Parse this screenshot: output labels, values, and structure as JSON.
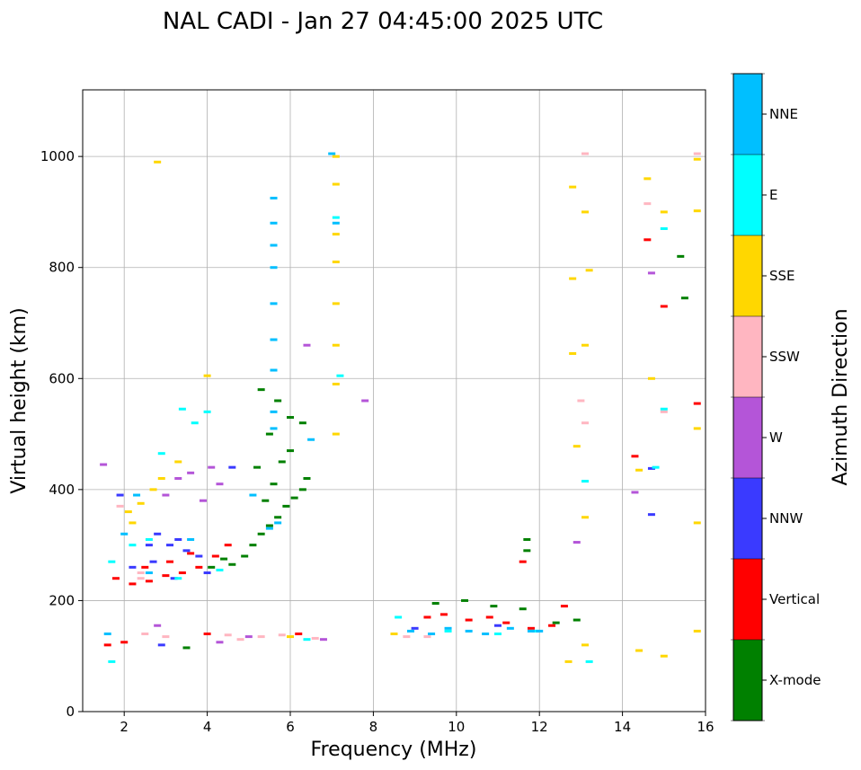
{
  "chart_data": {
    "type": "scatter",
    "title": "NAL CADI - Jan 27 04:45:00 2025 UTC",
    "xlabel": "Frequency (MHz)",
    "ylabel": "Virtual height (km)",
    "xlim": [
      1,
      16
    ],
    "ylim": [
      0,
      1120
    ],
    "xticks": [
      2,
      4,
      6,
      8,
      10,
      12,
      14,
      16
    ],
    "yticks": [
      0,
      200,
      400,
      600,
      800,
      1000
    ],
    "grid": true,
    "colorbar": {
      "title": "Azimuth Direction",
      "position": "right",
      "categories": [
        {
          "name": "X-mode",
          "color": "#008000"
        },
        {
          "name": "Vertical",
          "color": "#ff0000"
        },
        {
          "name": "NNW",
          "color": "#3a3aff"
        },
        {
          "name": "W",
          "color": "#b455d8"
        },
        {
          "name": "SSW",
          "color": "#ffb6c1"
        },
        {
          "name": "SSE",
          "color": "#ffd700"
        },
        {
          "name": "E",
          "color": "#00ffff"
        },
        {
          "name": "NNE",
          "color": "#00bfff"
        }
      ]
    },
    "series": [
      {
        "name": "X-mode",
        "points": [
          [
            4.6,
            265
          ],
          [
            4.9,
            280
          ],
          [
            5.1,
            300
          ],
          [
            5.3,
            320
          ],
          [
            5.5,
            335
          ],
          [
            5.7,
            350
          ],
          [
            5.9,
            370
          ],
          [
            6.1,
            385
          ],
          [
            6.3,
            400
          ],
          [
            6.4,
            420
          ],
          [
            5.4,
            380
          ],
          [
            5.6,
            410
          ],
          [
            5.8,
            450
          ],
          [
            6.0,
            470
          ],
          [
            5.2,
            440
          ],
          [
            5.5,
            500
          ],
          [
            5.7,
            560
          ],
          [
            4.1,
            260
          ],
          [
            4.4,
            275
          ],
          [
            11.7,
            310
          ],
          [
            11.7,
            290
          ],
          [
            9.5,
            195
          ],
          [
            10.2,
            200
          ],
          [
            10.9,
            190
          ],
          [
            11.6,
            185
          ],
          [
            12.4,
            160
          ],
          [
            12.9,
            165
          ],
          [
            15.4,
            820
          ],
          [
            15.5,
            745
          ],
          [
            5.3,
            580
          ],
          [
            6.3,
            520
          ],
          [
            6.0,
            530
          ],
          [
            3.5,
            115
          ]
        ]
      },
      {
        "name": "Vertical",
        "points": [
          [
            1.8,
            240
          ],
          [
            2.2,
            230
          ],
          [
            2.6,
            235
          ],
          [
            3.0,
            245
          ],
          [
            3.4,
            250
          ],
          [
            3.8,
            260
          ],
          [
            4.2,
            280
          ],
          [
            4.5,
            300
          ],
          [
            2.5,
            260
          ],
          [
            3.1,
            270
          ],
          [
            3.6,
            285
          ],
          [
            9.3,
            170
          ],
          [
            9.7,
            175
          ],
          [
            10.3,
            165
          ],
          [
            10.8,
            170
          ],
          [
            11.2,
            160
          ],
          [
            11.8,
            150
          ],
          [
            12.3,
            155
          ],
          [
            12.6,
            190
          ],
          [
            14.6,
            850
          ],
          [
            15.0,
            730
          ],
          [
            15.8,
            555
          ],
          [
            14.3,
            460
          ],
          [
            11.6,
            270
          ],
          [
            1.6,
            120
          ],
          [
            2.0,
            125
          ],
          [
            6.2,
            140
          ],
          [
            4.0,
            140
          ]
        ]
      },
      {
        "name": "NNW",
        "points": [
          [
            2.8,
            320
          ],
          [
            3.1,
            300
          ],
          [
            3.3,
            310
          ],
          [
            2.2,
            260
          ],
          [
            2.7,
            270
          ],
          [
            3.5,
            290
          ],
          [
            3.2,
            240
          ],
          [
            4.0,
            250
          ],
          [
            4.6,
            440
          ],
          [
            14.7,
            355
          ],
          [
            14.7,
            438
          ],
          [
            9.0,
            150
          ],
          [
            11.0,
            155
          ],
          [
            1.9,
            390
          ],
          [
            2.6,
            300
          ],
          [
            3.8,
            280
          ],
          [
            2.9,
            120
          ]
        ]
      },
      {
        "name": "W",
        "points": [
          [
            3.3,
            420
          ],
          [
            3.0,
            390
          ],
          [
            3.6,
            430
          ],
          [
            4.1,
            440
          ],
          [
            4.3,
            410
          ],
          [
            6.4,
            660
          ],
          [
            7.8,
            560
          ],
          [
            12.9,
            305
          ],
          [
            14.7,
            790
          ],
          [
            14.3,
            395
          ],
          [
            2.8,
            155
          ],
          [
            5.0,
            135
          ],
          [
            4.3,
            125
          ],
          [
            6.8,
            130
          ],
          [
            1.5,
            445
          ],
          [
            3.9,
            380
          ]
        ]
      },
      {
        "name": "SSW",
        "points": [
          [
            2.5,
            140
          ],
          [
            3.0,
            135
          ],
          [
            4.8,
            130
          ],
          [
            5.3,
            135
          ],
          [
            5.8,
            138
          ],
          [
            6.6,
            132
          ],
          [
            9.3,
            135
          ],
          [
            13.0,
            560
          ],
          [
            13.1,
            520
          ],
          [
            13.1,
            1005
          ],
          [
            15.8,
            1005
          ],
          [
            14.6,
            915
          ],
          [
            15.0,
            540
          ],
          [
            2.4,
            240
          ],
          [
            1.9,
            370
          ],
          [
            2.4,
            250
          ],
          [
            4.5,
            138
          ],
          [
            8.8,
            135
          ]
        ]
      },
      {
        "name": "SSE",
        "points": [
          [
            2.1,
            360
          ],
          [
            2.4,
            375
          ],
          [
            2.7,
            400
          ],
          [
            2.9,
            420
          ],
          [
            3.3,
            450
          ],
          [
            2.2,
            340
          ],
          [
            2.8,
            990
          ],
          [
            4.0,
            605
          ],
          [
            7.1,
            1000
          ],
          [
            7.1,
            950
          ],
          [
            7.1,
            860
          ],
          [
            7.1,
            810
          ],
          [
            7.1,
            735
          ],
          [
            7.1,
            660
          ],
          [
            7.1,
            590
          ],
          [
            7.1,
            500
          ],
          [
            12.8,
            945
          ],
          [
            13.1,
            900
          ],
          [
            13.2,
            795
          ],
          [
            12.8,
            780
          ],
          [
            12.8,
            645
          ],
          [
            13.1,
            660
          ],
          [
            12.9,
            478
          ],
          [
            13.1,
            350
          ],
          [
            13.1,
            120
          ],
          [
            12.7,
            90
          ],
          [
            14.6,
            960
          ],
          [
            15.0,
            900
          ],
          [
            14.7,
            600
          ],
          [
            14.4,
            435
          ],
          [
            14.4,
            110
          ],
          [
            15.0,
            100
          ],
          [
            15.8,
            902
          ],
          [
            15.8,
            995
          ],
          [
            15.8,
            510
          ],
          [
            15.8,
            340
          ],
          [
            15.8,
            145
          ],
          [
            8.5,
            140
          ],
          [
            6.0,
            135
          ]
        ]
      },
      {
        "name": "E",
        "points": [
          [
            1.7,
            270
          ],
          [
            2.2,
            300
          ],
          [
            2.6,
            310
          ],
          [
            3.4,
            545
          ],
          [
            4.0,
            540
          ],
          [
            3.7,
            520
          ],
          [
            2.9,
            465
          ],
          [
            3.3,
            240
          ],
          [
            4.3,
            255
          ],
          [
            7.1,
            890
          ],
          [
            7.2,
            605
          ],
          [
            13.1,
            415
          ],
          [
            13.2,
            90
          ],
          [
            14.8,
            440
          ],
          [
            15.0,
            545
          ],
          [
            15.0,
            870
          ],
          [
            8.6,
            170
          ],
          [
            9.8,
            145
          ],
          [
            11.0,
            140
          ],
          [
            11.9,
            145
          ],
          [
            1.7,
            90
          ],
          [
            6.4,
            130
          ]
        ]
      },
      {
        "name": "NNE",
        "points": [
          [
            5.6,
            925
          ],
          [
            5.6,
            880
          ],
          [
            5.6,
            840
          ],
          [
            5.6,
            800
          ],
          [
            5.6,
            735
          ],
          [
            5.6,
            670
          ],
          [
            5.6,
            615
          ],
          [
            5.6,
            540
          ],
          [
            5.6,
            510
          ],
          [
            5.7,
            340
          ],
          [
            5.5,
            330
          ],
          [
            5.1,
            390
          ],
          [
            2.0,
            320
          ],
          [
            2.3,
            390
          ],
          [
            3.6,
            310
          ],
          [
            7.0,
            1005
          ],
          [
            7.1,
            880
          ],
          [
            9.4,
            140
          ],
          [
            9.8,
            150
          ],
          [
            10.3,
            145
          ],
          [
            10.7,
            140
          ],
          [
            11.3,
            150
          ],
          [
            11.8,
            145
          ],
          [
            8.9,
            145
          ],
          [
            6.5,
            490
          ],
          [
            2.6,
            250
          ],
          [
            1.6,
            140
          ],
          [
            12.0,
            145
          ]
        ]
      }
    ]
  }
}
